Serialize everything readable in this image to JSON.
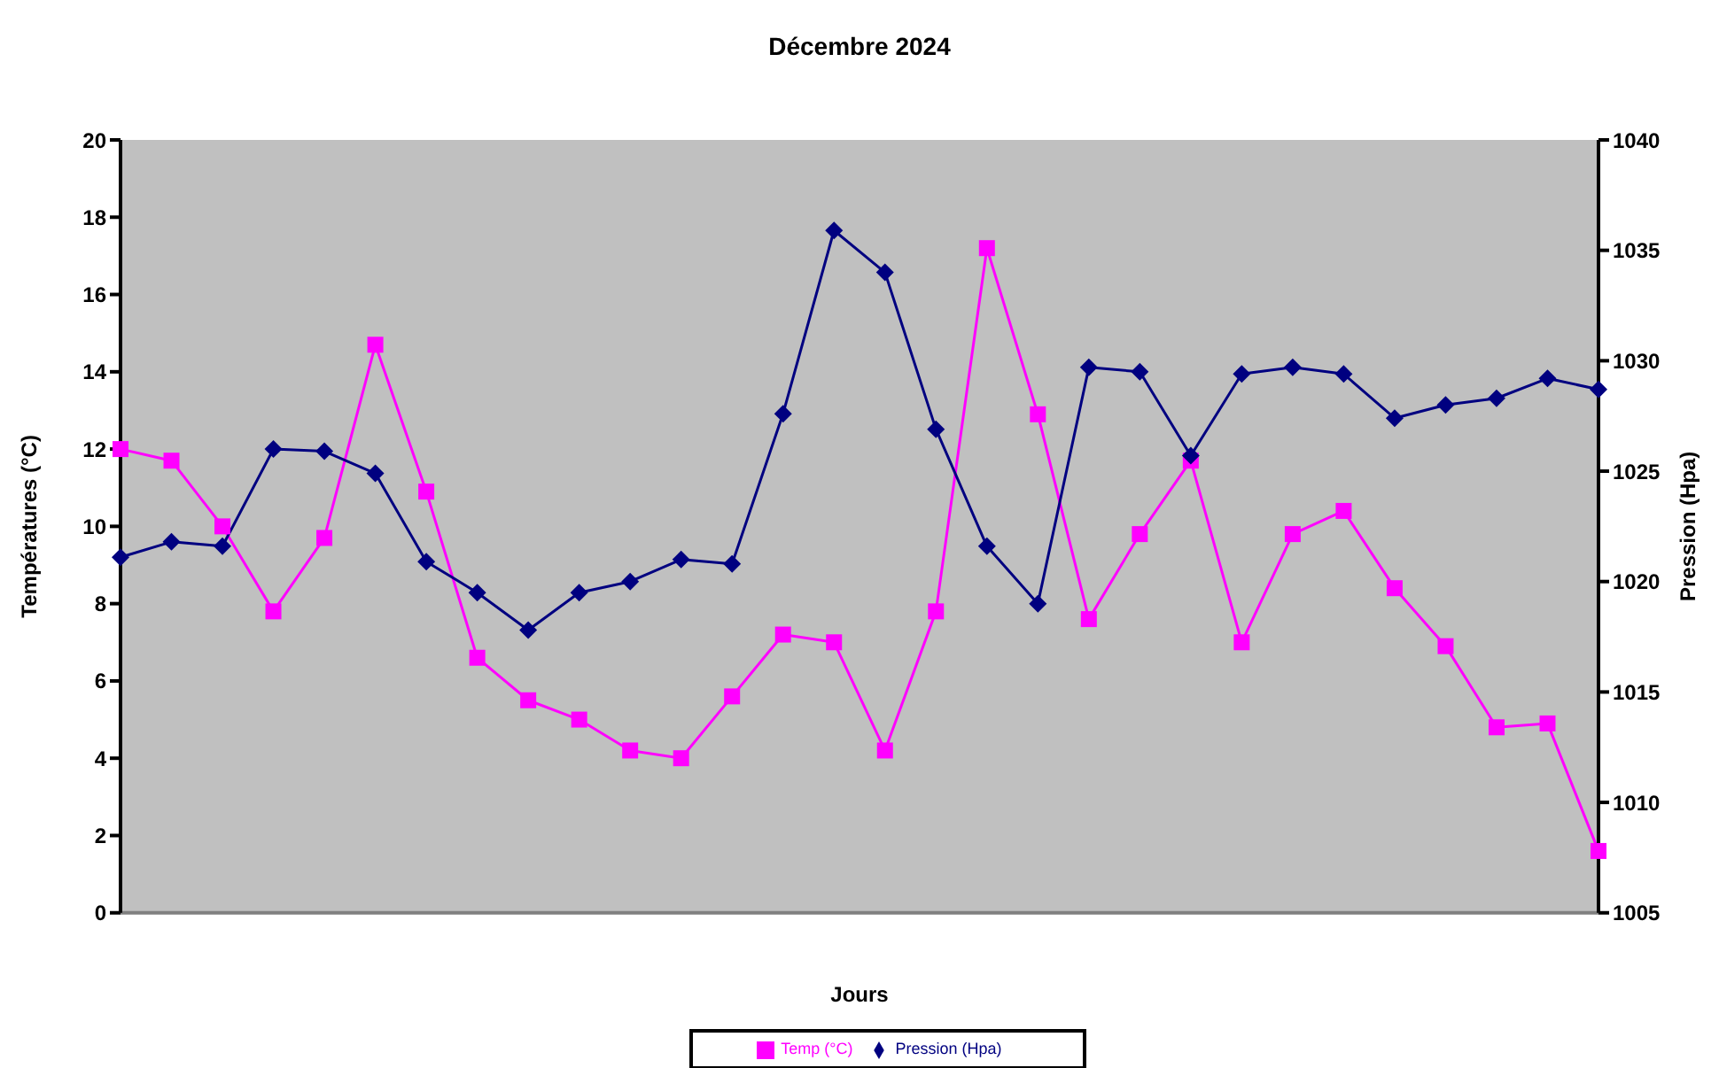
{
  "chart_data": {
    "type": "line",
    "title": "Décembre 2024",
    "xlabel": "Jours",
    "ylabel": "Températures (°C)",
    "y2label": "Pression (Hpa)",
    "categories": [
      null,
      null,
      null,
      null,
      null,
      null,
      null,
      null,
      null,
      null,
      null,
      null,
      null,
      null,
      null,
      null,
      null,
      null,
      null,
      null,
      null,
      null,
      null,
      null,
      null,
      null,
      null,
      null,
      null,
      null
    ],
    "series": [
      {
        "name": "Temp (°C)",
        "color": "#ff00ff",
        "marker": "square",
        "values": [
          12,
          11.7,
          10,
          7.8,
          9.7,
          14.7,
          10.9,
          6.6,
          5.5,
          5,
          4.2,
          4,
          5.6,
          7.2,
          7,
          4.2,
          7.8,
          17.2,
          12.9,
          7.6,
          9.8,
          11.7,
          7,
          9.8,
          10.4,
          8.4,
          6.9,
          4.8,
          4.9,
          1.6
        ]
      },
      {
        "name": "Pression (Hpa)",
        "color": "#000080",
        "marker": "diamond",
        "axis": "y2",
        "values": [
          1021.1,
          1021.8,
          1021.6,
          1026,
          1025.9,
          1024.9,
          1020.9,
          1019.5,
          1017.8,
          1019.5,
          1020,
          1021,
          1020.8,
          1027.6,
          1035.9,
          1034,
          1026.9,
          1021.6,
          1019,
          1029.7,
          1029.5,
          1025.7,
          1029.4,
          1029.7,
          1029.4,
          1027.4,
          1028,
          1028.3,
          1029.2,
          1028.7
        ]
      }
    ],
    "ylim": [
      0,
      20
    ],
    "yticks": [
      0,
      2,
      4,
      6,
      8,
      10,
      12,
      14,
      16,
      18,
      20
    ],
    "y2lim": [
      1005,
      1040
    ],
    "y2ticks": [
      1005,
      1010,
      1015,
      1020,
      1025,
      1030,
      1035,
      1040
    ],
    "grid": false,
    "legend": "bottom",
    "tick_labels": "y"
  }
}
